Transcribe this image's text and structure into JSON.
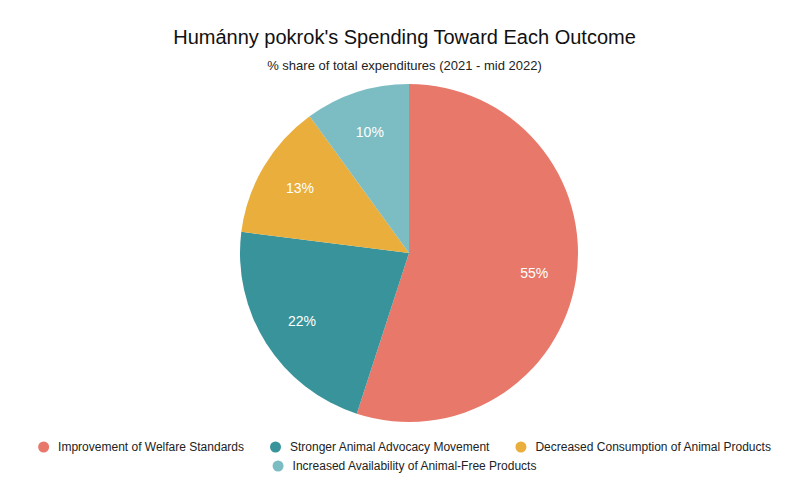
{
  "chart_data": {
    "type": "pie",
    "title": "Humánny pokrok's Spending Toward Each Outcome",
    "subtitle": "% share of total expenditures (2021 - mid 2022)",
    "categories": [
      "Improvement of Welfare Standards",
      "Stronger Animal Advocacy Movement",
      "Decreased Consumption of Animal Products",
      "Increased Availability of Animal-Free Products"
    ],
    "values": [
      55,
      22,
      13,
      10
    ],
    "value_labels": [
      "55%",
      "22%",
      "13%",
      "10%"
    ],
    "colors": [
      "#e8796a",
      "#38939a",
      "#e9ae3c",
      "#7cbcc3"
    ],
    "data_labels": true,
    "legend": "bottom"
  }
}
